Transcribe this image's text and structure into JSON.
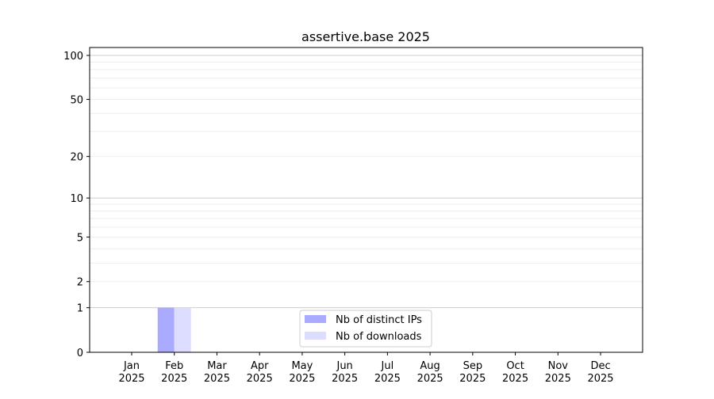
{
  "chart_data": {
    "type": "bar",
    "title": "assertive.base 2025",
    "xlabel": "",
    "ylabel": "",
    "yscale": "log(1+y)",
    "ylim": [
      0,
      113
    ],
    "grid": true,
    "legend_placement": "lower-center",
    "categories": [
      "Jan\n2025",
      "Feb\n2025",
      "Mar\n2025",
      "Apr\n2025",
      "May\n2025",
      "Jun\n2025",
      "Jul\n2025",
      "Aug\n2025",
      "Sep\n2025",
      "Oct\n2025",
      "Nov\n2025",
      "Dec\n2025"
    ],
    "y_ticks": [
      0,
      1,
      2,
      5,
      10,
      20,
      50,
      100
    ],
    "series": [
      {
        "name": "Nb of distinct IPs",
        "color": "#aaaaff",
        "values": [
          0,
          1,
          0,
          0,
          0,
          0,
          0,
          0,
          0,
          0,
          0,
          0
        ]
      },
      {
        "name": "Nb of downloads",
        "color": "#ddddff",
        "values": [
          0,
          1,
          0,
          0,
          0,
          0,
          0,
          0,
          0,
          0,
          0,
          0
        ]
      }
    ]
  }
}
